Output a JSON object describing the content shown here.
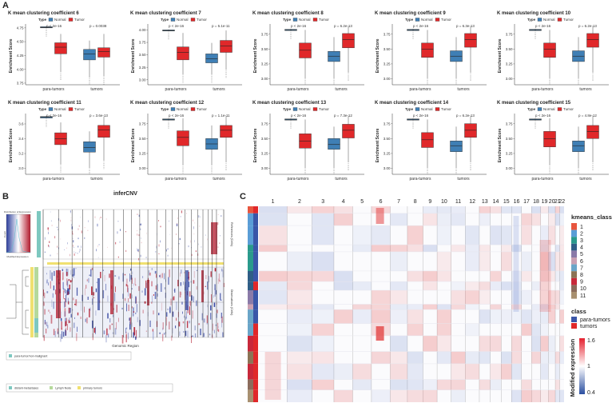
{
  "panel_letters": {
    "a": "A",
    "b": "B",
    "c": "C"
  },
  "panel_a": {
    "legend_type_label": "Type",
    "legend_normal": "Normal",
    "legend_tumor": "Tumor",
    "ylabel": "Enrichment Score",
    "x_categories": [
      "para-tumors",
      "tumors"
    ],
    "colors": {
      "normal": "#3f7fb5",
      "tumor": "#e0282a"
    },
    "plots": [
      {
        "title": "K mean clustering coefficient 6",
        "p_left": "p < 2e-16",
        "p_right": "p = 0.0038",
        "yticks": [
          "3.75",
          "4.00",
          "4.25",
          "4.50",
          "4.75"
        ],
        "ymin": 3.72,
        "ymax": 4.82,
        "boxes": {
          "para_normal": [
            4.74,
            4.75,
            4.76,
            4.77,
            4.78
          ],
          "para_tumor": [
            3.95,
            4.28,
            4.4,
            4.48,
            4.64
          ],
          "tumors_normal": [
            3.85,
            4.17,
            4.28,
            4.36,
            4.52
          ],
          "tumors_tumor": [
            3.87,
            4.22,
            4.32,
            4.39,
            4.64
          ]
        }
      },
      {
        "title": "K mean clustering coefficient 7",
        "p_left": "p < 2e-16",
        "p_right": "p = 5.1e-11",
        "yticks": [
          "3.00",
          "3.25",
          "3.50",
          "3.75",
          "4.00"
        ],
        "ymin": 2.9,
        "ymax": 4.12,
        "boxes": {
          "para_normal": [
            3.97,
            3.98,
            3.99,
            4.0,
            4.01
          ],
          "para_tumor": [
            3.1,
            3.4,
            3.55,
            3.66,
            3.94
          ],
          "tumors_normal": [
            3.1,
            3.34,
            3.42,
            3.52,
            3.74
          ],
          "tumors_tumor": [
            3.2,
            3.55,
            3.68,
            3.79,
            3.99
          ]
        }
      },
      {
        "title": "K mean clustering coefficient 8",
        "p_left": "p < 2e-16",
        "p_right": "p = 6.2e-13",
        "yticks": [
          "3.00",
          "3.25",
          "3.50",
          "3.75"
        ],
        "ymin": 2.9,
        "ymax": 3.92,
        "boxes": {
          "para_normal": [
            3.8,
            3.81,
            3.82,
            3.83,
            3.84
          ],
          "para_tumor": [
            3.0,
            3.35,
            3.48,
            3.6,
            3.82
          ],
          "tumors_normal": [
            3.0,
            3.29,
            3.38,
            3.46,
            3.7
          ],
          "tumors_tumor": [
            3.1,
            3.52,
            3.66,
            3.76,
            3.88
          ]
        }
      },
      {
        "title": "K mean clustering coefficient 9",
        "p_left": "p < 2e-16",
        "p_right": "p = 6.3e-13",
        "yticks": [
          "3.00",
          "3.25",
          "3.50",
          "3.75"
        ],
        "ymin": 2.9,
        "ymax": 3.92,
        "boxes": {
          "para_normal": [
            3.8,
            3.81,
            3.82,
            3.83,
            3.84
          ],
          "para_tumor": [
            3.0,
            3.36,
            3.5,
            3.6,
            3.82
          ],
          "tumors_normal": [
            3.0,
            3.29,
            3.38,
            3.47,
            3.7
          ],
          "tumors_tumor": [
            3.1,
            3.53,
            3.66,
            3.76,
            3.88
          ]
        }
      },
      {
        "title": "K mean clustering coefficient 10",
        "p_left": "p < 2e-16",
        "p_right": "p = 6.2e-13",
        "yticks": [
          "3.00",
          "3.25",
          "3.50",
          "3.75"
        ],
        "ymin": 2.9,
        "ymax": 3.92,
        "boxes": {
          "para_normal": [
            3.8,
            3.81,
            3.82,
            3.83,
            3.84
          ],
          "para_tumor": [
            3.0,
            3.36,
            3.5,
            3.6,
            3.82
          ],
          "tumors_normal": [
            3.0,
            3.29,
            3.38,
            3.47,
            3.7
          ],
          "tumors_tumor": [
            3.1,
            3.53,
            3.66,
            3.76,
            3.88
          ]
        }
      },
      {
        "title": "K mean clustering coefficient 11",
        "p_left": "p < 2e-16",
        "p_right": "p = 3.6e-13",
        "yticks": [
          "3.0",
          "3.2",
          "3.4",
          "3.6"
        ],
        "ymin": 2.92,
        "ymax": 3.74,
        "boxes": {
          "para_normal": [
            3.67,
            3.68,
            3.69,
            3.7,
            3.71
          ],
          "para_tumor": [
            3.05,
            3.32,
            3.4,
            3.48,
            3.62
          ],
          "tumors_normal": [
            3.0,
            3.22,
            3.28,
            3.36,
            3.5
          ],
          "tumors_tumor": [
            3.1,
            3.42,
            3.52,
            3.58,
            3.7
          ]
        }
      },
      {
        "title": "K mean clustering coefficient 12",
        "p_left": "p < 2e-16",
        "p_right": "p = 1.1e-11",
        "yticks": [
          "3.00",
          "3.25",
          "3.50",
          "3.75"
        ],
        "ymin": 2.9,
        "ymax": 3.92,
        "boxes": {
          "para_normal": [
            3.8,
            3.81,
            3.82,
            3.83,
            3.84
          ],
          "para_tumor": [
            3.05,
            3.38,
            3.52,
            3.63,
            3.84
          ],
          "tumors_normal": [
            3.05,
            3.32,
            3.41,
            3.5,
            3.72
          ],
          "tumors_tumor": [
            3.1,
            3.52,
            3.64,
            3.72,
            3.88
          ]
        }
      },
      {
        "title": "K mean clustering coefficient 13",
        "p_left": "p < 2e-16",
        "p_right": "p = 7.3e-12",
        "yticks": [
          "3.00",
          "3.25",
          "3.50",
          "3.75"
        ],
        "ymin": 2.9,
        "ymax": 3.92,
        "boxes": {
          "para_normal": [
            3.8,
            3.81,
            3.82,
            3.83,
            3.84
          ],
          "para_tumor": [
            3.0,
            3.34,
            3.46,
            3.58,
            3.82
          ],
          "tumors_normal": [
            3.0,
            3.32,
            3.4,
            3.5,
            3.7
          ],
          "tumors_tumor": [
            3.1,
            3.51,
            3.64,
            3.74,
            3.88
          ]
        }
      },
      {
        "title": "K mean clustering coefficient 14",
        "p_left": "p < 2e-16",
        "p_right": "p = 6.2e-13",
        "yticks": [
          "3.00",
          "3.25",
          "3.50",
          "3.75"
        ],
        "ymin": 2.9,
        "ymax": 3.92,
        "boxes": {
          "para_normal": [
            3.8,
            3.81,
            3.82,
            3.83,
            3.84
          ],
          "para_tumor": [
            3.0,
            3.35,
            3.48,
            3.6,
            3.82
          ],
          "tumors_normal": [
            3.0,
            3.28,
            3.38,
            3.46,
            3.7
          ],
          "tumors_tumor": [
            3.1,
            3.52,
            3.64,
            3.75,
            3.88
          ]
        }
      },
      {
        "title": "K mean clustering coefficient 15",
        "p_left": "p < 2e-16",
        "p_right": "p = 4.8e-12",
        "yticks": [
          "3.00",
          "3.25",
          "3.50",
          "3.75"
        ],
        "ymin": 2.9,
        "ymax": 3.92,
        "boxes": {
          "para_normal": [
            3.8,
            3.81,
            3.82,
            3.83,
            3.84
          ],
          "para_tumor": [
            3.05,
            3.36,
            3.5,
            3.62,
            3.84
          ],
          "tumors_normal": [
            3.0,
            3.28,
            3.38,
            3.46,
            3.7
          ],
          "tumors_tumor": [
            3.1,
            3.5,
            3.62,
            3.72,
            3.88
          ]
        }
      }
    ]
  },
  "panel_b": {
    "title": "inferCNV",
    "xlabel": "Genomic Region",
    "ylabel_top": "References (Cells)",
    "ylabel_bottom": "Observations (Cells)",
    "key_title": "Distribution of Expression",
    "key_xlabel": "Modified Expression",
    "key_ylabel": "Count",
    "legend_1": "para-tumor/non-malignant",
    "legend_2": "distant-metastases",
    "legend_3": "Lymph Node",
    "legend_4": "primary tumors",
    "colors": {
      "teal": "#7ec8c0",
      "yellow": "#f0e070",
      "green": "#b5d99c",
      "red": "#b2182b",
      "blue": "#2c3e9c"
    }
  },
  "panel_c": {
    "chromosomes": [
      "1",
      "2",
      "3",
      "4",
      "5",
      "6",
      "7",
      "8",
      "9",
      "10",
      "11",
      "12",
      "13",
      "14",
      "15",
      "16",
      "17",
      "18",
      "19",
      "20",
      "21",
      "22"
    ],
    "legend_kmeans_title": "kmeans_class",
    "kmeans_classes": [
      "1",
      "2",
      "3",
      "4",
      "5",
      "6",
      "7",
      "8",
      "9",
      "10",
      "11"
    ],
    "kmeans_colors": [
      "#e8553e",
      "#5a9dd6",
      "#2a9a8c",
      "#2f5e86",
      "#8a7aa8",
      "#c9a0b2",
      "#6aa5c8",
      "#8b7355",
      "#c8283a",
      "#8b6c5c",
      "#a89070"
    ],
    "legend_class_title": "class",
    "class_labels": [
      "para-tumors",
      "tumors"
    ],
    "class_colors": [
      "#3a56a8",
      "#e0282a"
    ],
    "scale_title": "Modified expression",
    "scale_ticks": [
      "1.6",
      "1",
      "0.4"
    ],
    "scale_values": [
      1.6,
      1.0,
      0.4
    ]
  }
}
